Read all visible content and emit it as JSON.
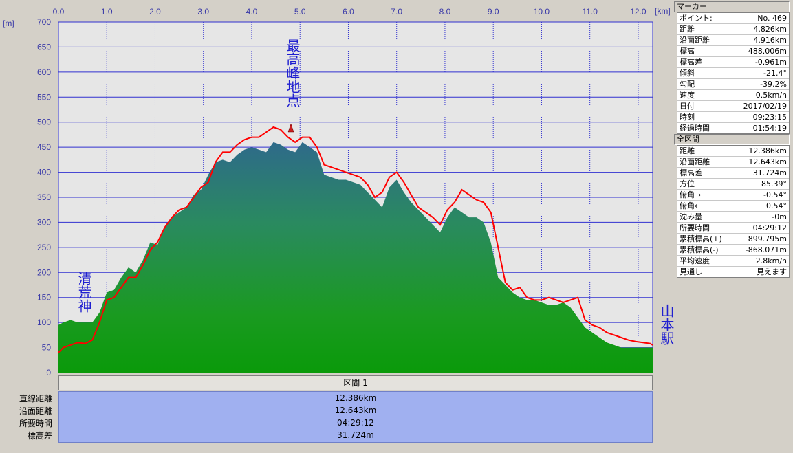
{
  "chart_data": {
    "type": "area",
    "x_unit": "[km]",
    "y_unit": "[m]",
    "xlim": [
      0,
      12.3
    ],
    "ylim": [
      0,
      700
    ],
    "x_ticks": [
      "0.0",
      "1.0",
      "2.0",
      "3.0",
      "4.0",
      "5.0",
      "6.0",
      "7.0",
      "8.0",
      "9.0",
      "10.0",
      "11.0",
      "12.0"
    ],
    "y_ticks": [
      "0",
      "50",
      "100",
      "150",
      "200",
      "250",
      "300",
      "350",
      "400",
      "450",
      "500",
      "550",
      "600",
      "650",
      "700"
    ],
    "grid": true,
    "series": [
      {
        "color": "#1a9a1a",
        "x": [
          0,
          0.1,
          0.25,
          0.4,
          0.55,
          0.7,
          0.85,
          1.0,
          1.15,
          1.3,
          1.45,
          1.6,
          1.75,
          1.9,
          2.05,
          2.2,
          2.35,
          2.5,
          2.65,
          2.8,
          2.95,
          3.1,
          3.25,
          3.4,
          3.55,
          3.7,
          3.85,
          4.0,
          4.15,
          4.3,
          4.45,
          4.6,
          4.75,
          4.9,
          5.05,
          5.2,
          5.35,
          5.5,
          5.65,
          5.8,
          5.95,
          6.1,
          6.25,
          6.4,
          6.55,
          6.7,
          6.85,
          7.0,
          7.15,
          7.3,
          7.45,
          7.6,
          7.75,
          7.9,
          8.05,
          8.2,
          8.35,
          8.5,
          8.65,
          8.8,
          8.95,
          9.1,
          9.25,
          9.4,
          9.55,
          9.7,
          9.85,
          10.0,
          10.15,
          10.3,
          10.45,
          10.6,
          10.75,
          10.9,
          11.05,
          11.2,
          11.35,
          11.5,
          11.65,
          11.8,
          11.95,
          12.1,
          12.25,
          12.3
        ],
        "values": [
          95,
          100,
          105,
          100,
          100,
          100,
          120,
          160,
          165,
          190,
          210,
          200,
          225,
          260,
          255,
          290,
          310,
          320,
          330,
          355,
          365,
          395,
          420,
          425,
          420,
          435,
          445,
          450,
          445,
          440,
          460,
          455,
          445,
          440,
          460,
          450,
          440,
          395,
          390,
          385,
          385,
          380,
          375,
          360,
          345,
          330,
          370,
          385,
          360,
          340,
          325,
          310,
          295,
          280,
          310,
          330,
          320,
          310,
          310,
          300,
          260,
          190,
          175,
          160,
          150,
          145,
          145,
          140,
          135,
          135,
          140,
          130,
          110,
          90,
          80,
          70,
          60,
          55,
          50,
          50,
          50,
          50,
          50,
          50
        ]
      },
      {
        "color": "#ff0000",
        "x": [
          0,
          0.1,
          0.25,
          0.4,
          0.55,
          0.7,
          0.85,
          1.0,
          1.15,
          1.3,
          1.45,
          1.6,
          1.75,
          1.9,
          2.05,
          2.2,
          2.35,
          2.5,
          2.65,
          2.8,
          2.95,
          3.1,
          3.25,
          3.4,
          3.55,
          3.7,
          3.85,
          4.0,
          4.15,
          4.3,
          4.45,
          4.6,
          4.75,
          4.9,
          5.05,
          5.2,
          5.35,
          5.5,
          5.65,
          5.8,
          5.95,
          6.1,
          6.25,
          6.4,
          6.55,
          6.7,
          6.85,
          7.0,
          7.15,
          7.3,
          7.45,
          7.6,
          7.75,
          7.9,
          8.05,
          8.2,
          8.35,
          8.5,
          8.65,
          8.8,
          8.95,
          9.1,
          9.25,
          9.4,
          9.55,
          9.7,
          9.85,
          10.0,
          10.15,
          10.3,
          10.45,
          10.6,
          10.75,
          10.9,
          11.05,
          11.2,
          11.35,
          11.5,
          11.65,
          11.8,
          11.95,
          12.1,
          12.25,
          12.3
        ],
        "values": [
          40,
          50,
          55,
          60,
          58,
          65,
          100,
          145,
          150,
          170,
          190,
          190,
          215,
          245,
          260,
          290,
          310,
          325,
          330,
          350,
          370,
          380,
          420,
          440,
          440,
          455,
          465,
          470,
          470,
          480,
          490,
          485,
          470,
          460,
          470,
          470,
          450,
          415,
          410,
          405,
          400,
          395,
          390,
          375,
          350,
          360,
          390,
          400,
          380,
          355,
          330,
          320,
          310,
          295,
          325,
          340,
          365,
          355,
          345,
          340,
          320,
          250,
          180,
          165,
          170,
          150,
          145,
          145,
          150,
          145,
          140,
          145,
          150,
          105,
          95,
          90,
          80,
          75,
          70,
          65,
          62,
          60,
          58,
          55
        ]
      }
    ]
  },
  "annotations": {
    "start": "清荒神",
    "peak": "最高峰地点",
    "end": "山本駅"
  },
  "marker_panel": {
    "title": "マーカー",
    "rows": [
      {
        "k": "ポイント:",
        "v": "No. 469"
      },
      {
        "k": "距離",
        "v": "4.826km"
      },
      {
        "k": "沿面距離",
        "v": "4.916km"
      },
      {
        "k": "標高",
        "v": "488.006m"
      },
      {
        "k": "標高差",
        "v": "-0.961m"
      },
      {
        "k": "傾斜",
        "v": "-21.4°"
      },
      {
        "k": "勾配",
        "v": "-39.2%"
      },
      {
        "k": "速度",
        "v": "0.5km/h"
      },
      {
        "k": "日付",
        "v": "2017/02/19"
      },
      {
        "k": "時刻",
        "v": "09:23:15"
      },
      {
        "k": "経過時間",
        "v": "01:54:19"
      }
    ]
  },
  "total_panel": {
    "title": "全区間",
    "rows": [
      {
        "k": "距離",
        "v": "12.386km"
      },
      {
        "k": "沿面距離",
        "v": "12.643km"
      },
      {
        "k": "標高差",
        "v": "31.724m"
      },
      {
        "k": "方位",
        "v": "85.39°"
      },
      {
        "k": "俯角→",
        "v": "-0.54°"
      },
      {
        "k": "俯角←",
        "v": "0.54°"
      },
      {
        "k": "沈み量",
        "v": "-0m"
      },
      {
        "k": "所要時間",
        "v": "04:29:12"
      },
      {
        "k": "累積標高(+)",
        "v": "899.795m"
      },
      {
        "k": "累積標高(-)",
        "v": "-868.071m"
      },
      {
        "k": "平均速度",
        "v": "2.8km/h"
      },
      {
        "k": "見通し",
        "v": "見えます"
      }
    ]
  },
  "section": {
    "header": "区間 1",
    "labels": [
      "直線距離",
      "沿面距離",
      "所要時間",
      "標高差"
    ],
    "values": [
      "12.386km",
      "12.643km",
      "04:29:12",
      "31.724m"
    ]
  },
  "colors": {
    "plot_bg": "#e6e6e6",
    "grid": "#3030d0",
    "axis_text": "#3a3aa8",
    "annotation": "#2020d0"
  }
}
